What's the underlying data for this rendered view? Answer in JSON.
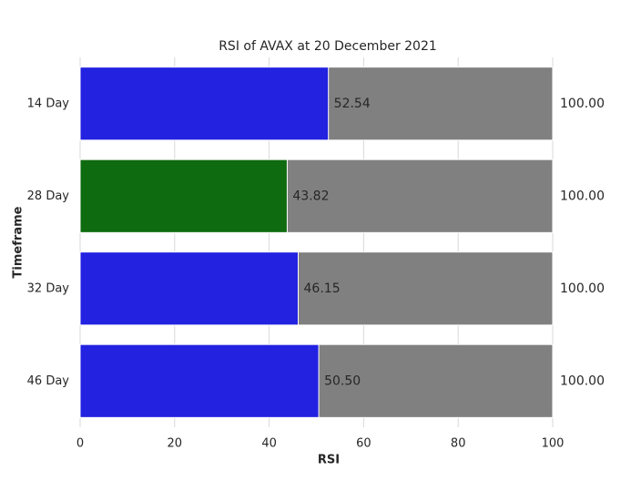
{
  "chart_data": {
    "type": "bar",
    "orientation": "horizontal",
    "stacked": false,
    "title": "RSI of AVAX at 20 December 2021",
    "xlabel": "RSI",
    "ylabel": "Timeframe",
    "categories": [
      "14 Day",
      "28 Day",
      "32 Day",
      "46 Day"
    ],
    "series": [
      {
        "color": "#808080",
        "values": [
          100,
          100,
          100,
          100
        ],
        "value_labels": [
          "100.00",
          "100.00",
          "100.00",
          "100.00"
        ]
      },
      {
        "colors": [
          "#2222e0",
          "#0f6b0f",
          "#2222e0",
          "#2222e0"
        ],
        "values": [
          52.54,
          43.82,
          46.15,
          50.5
        ],
        "value_labels": [
          "52.54",
          "43.82",
          "46.15",
          "50.50"
        ]
      }
    ],
    "xlim": [
      0,
      100
    ],
    "xticks": [
      0,
      20,
      40,
      60,
      80,
      100
    ],
    "grid": true
  }
}
